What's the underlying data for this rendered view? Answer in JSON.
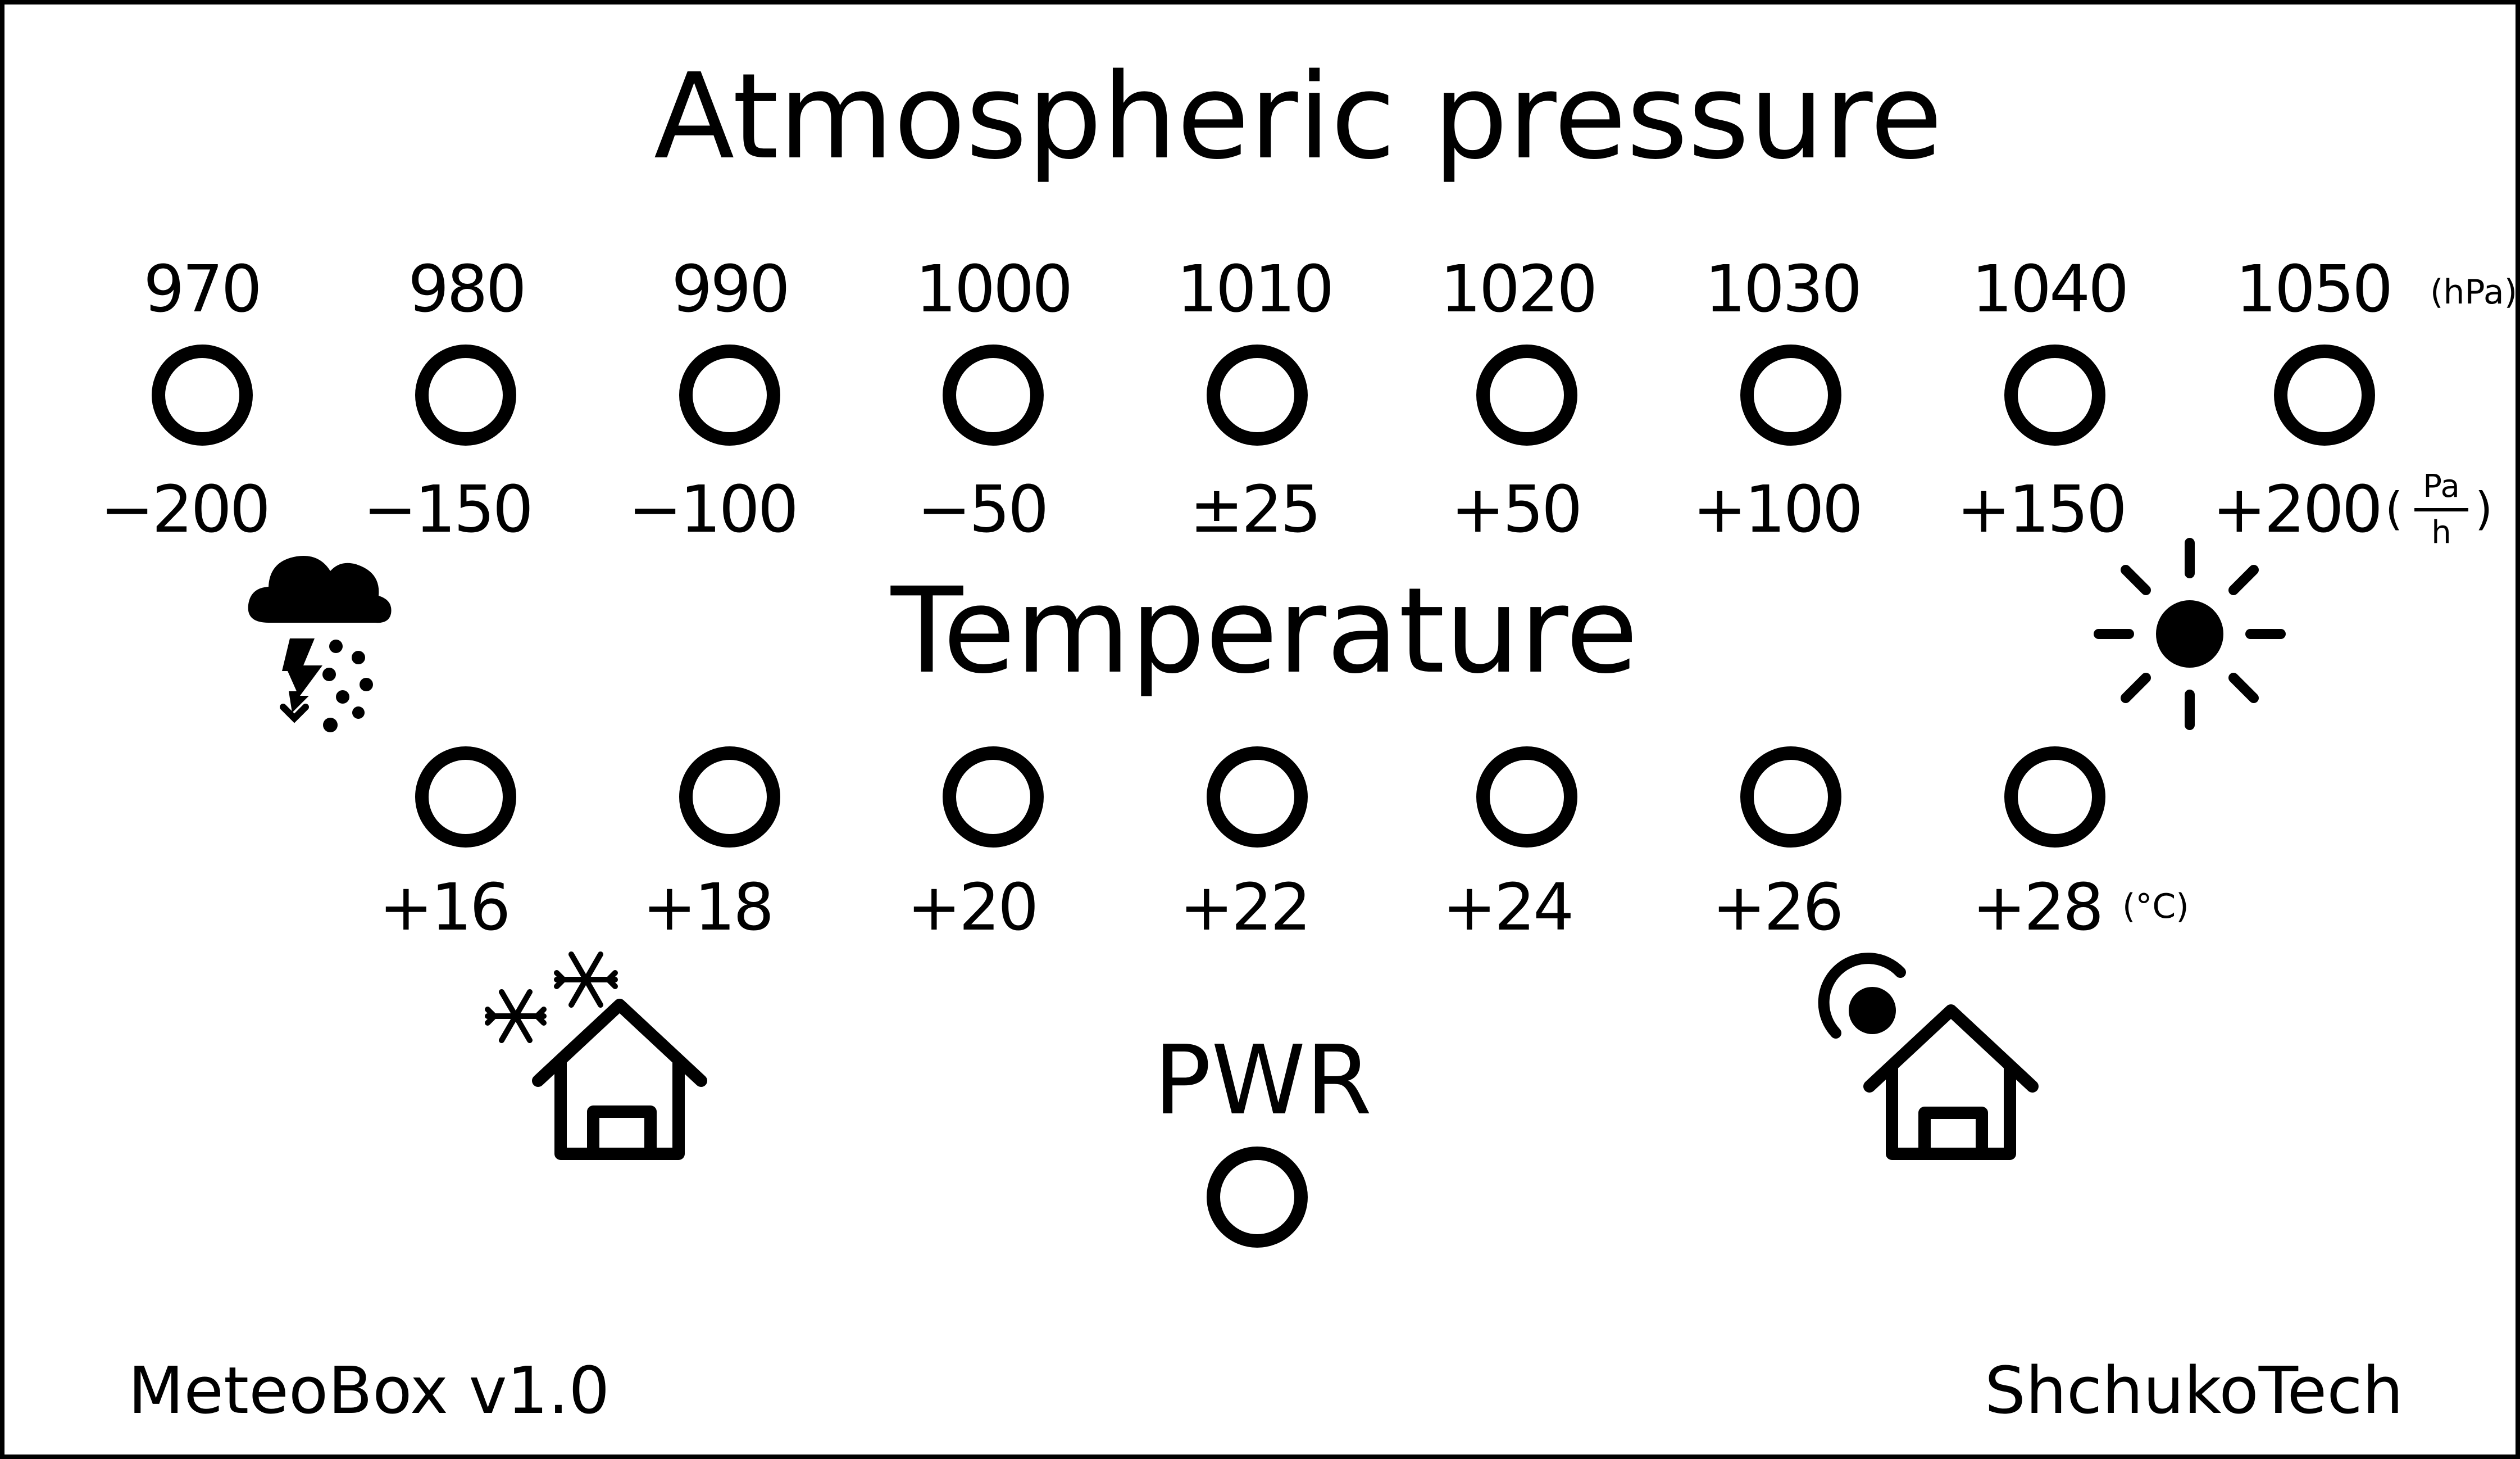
{
  "pressure": {
    "title": "Atmospheric pressure",
    "unit": "(hPa)",
    "values": [
      "970",
      "980",
      "990",
      "1000",
      "1010",
      "1020",
      "1030",
      "1040",
      "1050"
    ],
    "trend_values": [
      "−200",
      "−150",
      "−100",
      "−50",
      "±25",
      "+50",
      "+100",
      "+150",
      "+200"
    ],
    "trend_unit": {
      "numerator": "Pa",
      "denominator": "h"
    }
  },
  "temperature": {
    "title": "Temperature",
    "unit": "(°C)",
    "values": [
      "+16",
      "+18",
      "+20",
      "+22",
      "+24",
      "+26",
      "+28"
    ]
  },
  "power": {
    "label": "PWR"
  },
  "footer": {
    "model": "MeteoBox v1.0",
    "maker": "ShchukoTech"
  },
  "icons": {
    "storm": "storm-cloud-icon",
    "sun": "sun-icon",
    "cold_house": "cold-house-icon",
    "warm_house": "warm-house-icon"
  },
  "colors": {
    "ink": "#000000",
    "background": "#ffffff"
  }
}
